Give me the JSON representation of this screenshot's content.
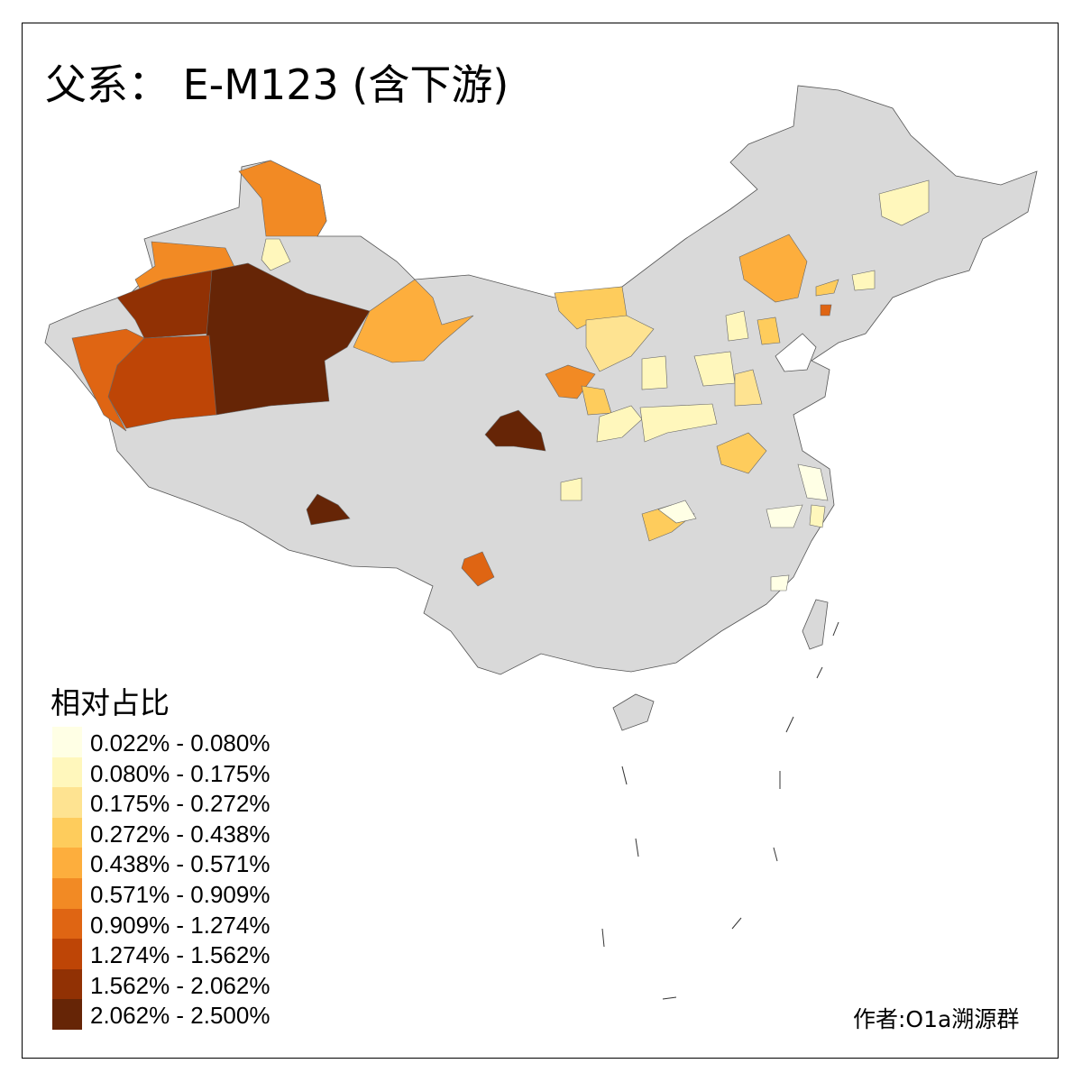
{
  "title": "父系： E-M123 (含下游)",
  "legend": {
    "title": "相对占比",
    "items": [
      {
        "label": "0.022% - 0.080%",
        "color": "#FFFFE5"
      },
      {
        "label": "0.080% - 0.175%",
        "color": "#FFF7BC"
      },
      {
        "label": "0.175% - 0.272%",
        "color": "#FEE391"
      },
      {
        "label": "0.272% - 0.438%",
        "color": "#FECC5C"
      },
      {
        "label": "0.438% - 0.571%",
        "color": "#FDAE3D"
      },
      {
        "label": "0.571% - 0.909%",
        "color": "#F28A24"
      },
      {
        "label": "0.909% - 1.274%",
        "color": "#DF6513"
      },
      {
        "label": "1.274% - 1.562%",
        "color": "#BE4506"
      },
      {
        "label": "1.562% - 2.062%",
        "color": "#913104"
      },
      {
        "label": "2.062% - 2.500%",
        "color": "#662506"
      }
    ]
  },
  "no_data_color": "#D9D9D9",
  "credit": "作者:O1a溯源群"
}
